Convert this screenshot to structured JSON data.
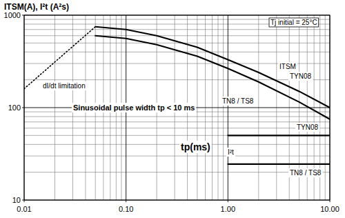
{
  "chart_data": {
    "type": "line",
    "y_label": "ITSM(A), I²t (A²s)",
    "x_label": "tp(ms)",
    "annotations": [
      "Tj initial = 25°C",
      "Sinusoidal pulse width tp < 10 ms",
      "ITSM",
      "I²t"
    ],
    "log": true,
    "grid": true,
    "xlim": [
      0.01,
      10
    ],
    "ylim": [
      10,
      1000
    ],
    "xticks": [
      0.01,
      {
        "value": 0.1,
        "label": "0.10"
      },
      {
        "value": 1,
        "label": "1.00"
      },
      {
        "value": 10,
        "label": "10.00"
      }
    ],
    "yticks": [
      10,
      100,
      1000
    ],
    "series": [
      {
        "name": "TYN08",
        "color": "#000000",
        "line_style": "solid",
        "x": [
          0.05,
          0.1,
          0.2,
          0.5,
          1,
          2,
          5,
          10
        ],
        "values": [
          750,
          700,
          600,
          450,
          330,
          240,
          150,
          100
        ]
      },
      {
        "name": "TN8 / TS8",
        "color": "#000000",
        "line_style": "solid",
        "x": [
          0.05,
          0.1,
          0.2,
          0.5,
          1,
          2,
          5,
          10
        ],
        "values": [
          600,
          560,
          480,
          360,
          265,
          190,
          115,
          75
        ]
      },
      {
        "name": "TYN08",
        "color": "#000000",
        "line_style": "solid",
        "x": [
          1,
          10
        ],
        "values": [
          50,
          50
        ]
      },
      {
        "name": "TN8 / TS8",
        "color": "#000000",
        "line_style": "solid",
        "x": [
          1,
          10
        ],
        "values": [
          24.5,
          24.5
        ]
      },
      {
        "name": "dI/dt limitation",
        "color": "#000000",
        "line_style": "dotted",
        "x": [
          0.01,
          0.05
        ],
        "values": [
          160,
          750
        ]
      }
    ]
  }
}
